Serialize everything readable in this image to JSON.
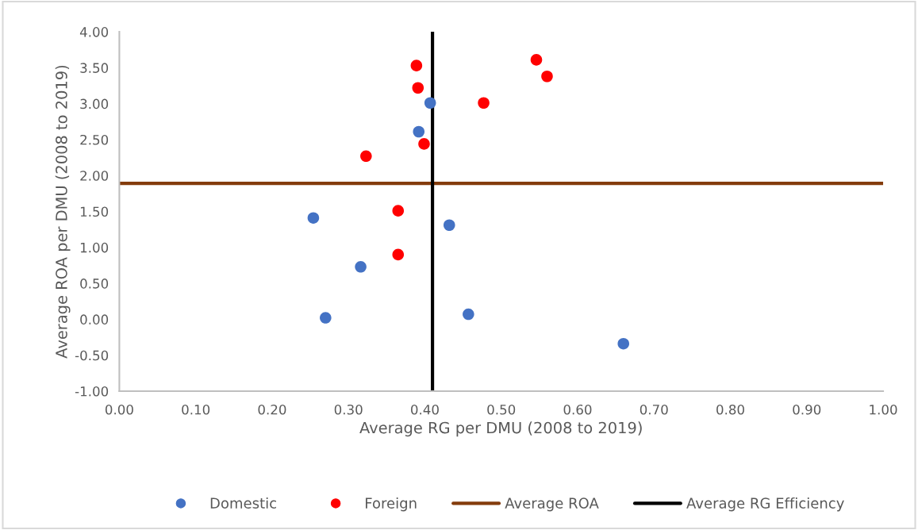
{
  "chart_data": {
    "type": "scatter",
    "xlabel": "Average RG per DMU (2008 to 2019)",
    "ylabel": "Average ROA per DMU (2008 to 2019)",
    "series": [
      {
        "name": "Domestic",
        "color": "#4472c4",
        "x": [
          0.254,
          0.27,
          0.316,
          0.392,
          0.407,
          0.432,
          0.457,
          0.66
        ],
        "values": [
          1.41,
          0.02,
          0.73,
          2.61,
          3.01,
          1.31,
          0.07,
          -0.34
        ]
      },
      {
        "name": "Foreign",
        "color": "#ff0000",
        "x": [
          0.389,
          0.391,
          0.399,
          0.323,
          0.365,
          0.365,
          0.477,
          0.546,
          0.56
        ],
        "values": [
          3.53,
          3.22,
          2.44,
          2.27,
          1.51,
          0.9,
          3.01,
          3.61,
          3.38
        ]
      }
    ],
    "ref_lines": [
      {
        "axis": "y",
        "value": 1.89,
        "label": "Average ROA",
        "color": "#843c0c"
      },
      {
        "axis": "x",
        "value": 0.41,
        "label": "Average RG Efficiency",
        "color": "#000000"
      }
    ],
    "xlim": [
      0,
      1
    ],
    "xticks": [
      {
        "value": 0,
        "label": "0.00"
      },
      {
        "value": 0.1,
        "label": "0.10"
      },
      {
        "value": 0.2,
        "label": "0.20"
      },
      {
        "value": 0.3,
        "label": "0.30"
      },
      {
        "value": 0.4,
        "label": "0.40"
      },
      {
        "value": 0.5,
        "label": "0.50"
      },
      {
        "value": 0.6,
        "label": "0.60"
      },
      {
        "value": 0.7,
        "label": "0.70"
      },
      {
        "value": 0.8,
        "label": "0.80"
      },
      {
        "value": 0.9,
        "label": "0.90"
      },
      {
        "value": 1,
        "label": "1.00"
      }
    ],
    "ylim": [
      -1,
      4
    ],
    "yticks": [
      {
        "value": -1,
        "label": "-1.00"
      },
      {
        "value": -0.5,
        "label": "-0.50"
      },
      {
        "value": 0,
        "label": "0.00"
      },
      {
        "value": 0.5,
        "label": "0.50"
      },
      {
        "value": 1,
        "label": "1.00"
      },
      {
        "value": 1.5,
        "label": "1.50"
      },
      {
        "value": 2,
        "label": "2.00"
      },
      {
        "value": 2.5,
        "label": "2.50"
      },
      {
        "value": 3,
        "label": "3.00"
      },
      {
        "value": 3.5,
        "label": "3.50"
      },
      {
        "value": 4,
        "label": "4.00"
      }
    ],
    "grid": false,
    "legend": "bottom",
    "marker": "circle"
  }
}
